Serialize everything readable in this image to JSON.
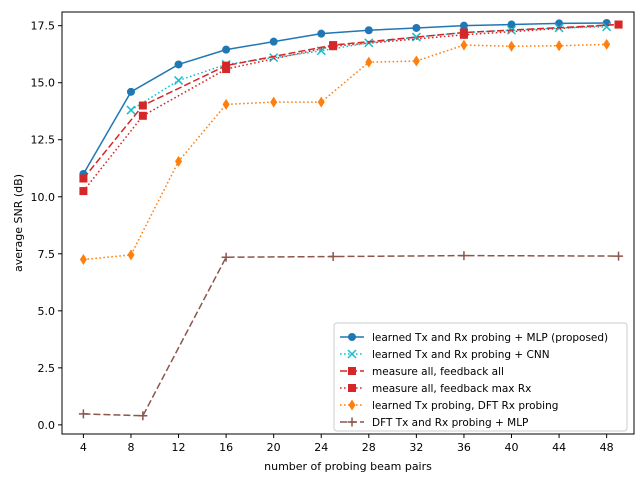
{
  "chart_data": {
    "type": "line",
    "title": "",
    "xlabel": "number of probing beam pairs",
    "ylabel": "average SNR (dB)",
    "xlim": [
      2.2,
      50.3
    ],
    "ylim": [
      -0.4,
      18.1
    ],
    "xticks": [
      "4",
      "8",
      "12",
      "16",
      "20",
      "24",
      "28",
      "32",
      "36",
      "40",
      "44",
      "48"
    ],
    "yticks": [
      "0.0",
      "2.5",
      "5.0",
      "7.5",
      "10.0",
      "12.5",
      "15.0",
      "17.5"
    ],
    "grid": false,
    "legend_position": "lower-right",
    "series": [
      {
        "name": "learned Tx and Rx probing + MLP (proposed)",
        "color": "#1f77b4",
        "linestyle": "solid",
        "marker": "circle",
        "x": [
          4,
          8,
          12,
          16,
          20,
          24,
          28,
          32,
          36,
          40,
          44,
          48
        ],
        "values": [
          11.0,
          14.6,
          15.8,
          16.45,
          16.8,
          17.15,
          17.3,
          17.4,
          17.5,
          17.55,
          17.6,
          17.62
        ]
      },
      {
        "name": "learned Tx and Rx probing + CNN",
        "color": "#17becf",
        "linestyle": "dotted",
        "marker": "x",
        "x": [
          8,
          12,
          16,
          20,
          24,
          28,
          32,
          36,
          40,
          44,
          48
        ],
        "values": [
          13.8,
          15.1,
          15.8,
          16.1,
          16.4,
          16.75,
          17.0,
          17.2,
          17.3,
          17.4,
          17.45
        ]
      },
      {
        "name": "measure all, feedback all",
        "color": "#d62728",
        "linestyle": "dashed",
        "marker": "square",
        "x": [
          4,
          9,
          16,
          25,
          36,
          49
        ],
        "values": [
          10.8,
          14.0,
          15.75,
          16.65,
          17.2,
          17.55
        ]
      },
      {
        "name": "measure all, feedback max Rx",
        "color": "#d62728",
        "linestyle": "dotted",
        "marker": "square",
        "x": [
          4,
          9,
          16,
          25,
          36,
          49
        ],
        "values": [
          10.25,
          13.55,
          15.6,
          16.6,
          17.1,
          17.55
        ]
      },
      {
        "name": "learned Tx probing, DFT Rx probing",
        "color": "#ff7f0e",
        "linestyle": "dotted",
        "marker": "diamond",
        "x": [
          4,
          8,
          12,
          16,
          20,
          24,
          28,
          32,
          36,
          40,
          44,
          48
        ],
        "values": [
          7.25,
          7.45,
          11.55,
          14.05,
          14.15,
          14.15,
          15.9,
          15.95,
          16.65,
          16.6,
          16.62,
          16.68
        ]
      },
      {
        "name": "DFT Tx and Rx probing + MLP",
        "color": "#8c564b",
        "linestyle": "dashed",
        "marker": "plus",
        "x": [
          4,
          9,
          16,
          25,
          36,
          49
        ],
        "values": [
          0.48,
          0.4,
          7.35,
          7.38,
          7.42,
          7.4
        ]
      }
    ]
  }
}
